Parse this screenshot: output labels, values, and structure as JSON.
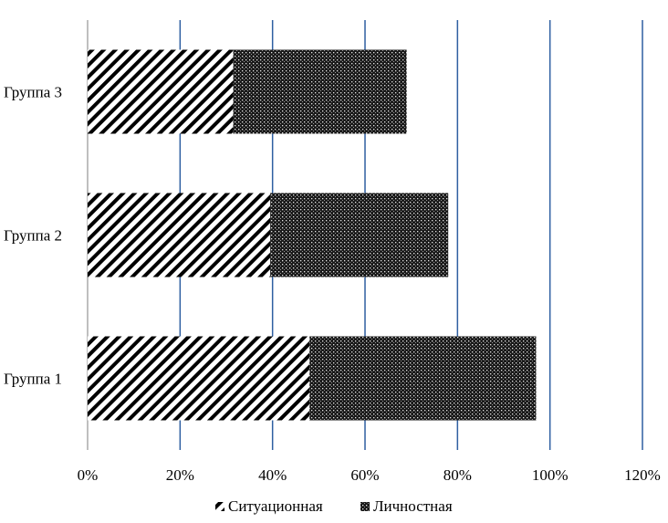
{
  "chart_data": {
    "type": "bar",
    "orientation": "horizontal",
    "stacked": true,
    "categories": [
      "Группа 1",
      "Группа 2",
      "Группа 3"
    ],
    "series": [
      {
        "name": "Ситуационная",
        "values": [
          48,
          39.5,
          31.5
        ],
        "pattern": "diagonal-hatch"
      },
      {
        "name": "Личностная",
        "values": [
          49,
          38.5,
          37.5
        ],
        "pattern": "dotted-dark"
      }
    ],
    "xticks": [
      "0%",
      "20%",
      "40%",
      "60%",
      "80%",
      "100%",
      "120%"
    ],
    "xlim": [
      0,
      120
    ],
    "grid": true,
    "legend_position": "bottom",
    "colors": {
      "grid": "#2e5fa1",
      "axis": "#bfbfbf",
      "bar_fill": "#000000",
      "background": "#ffffff"
    }
  }
}
